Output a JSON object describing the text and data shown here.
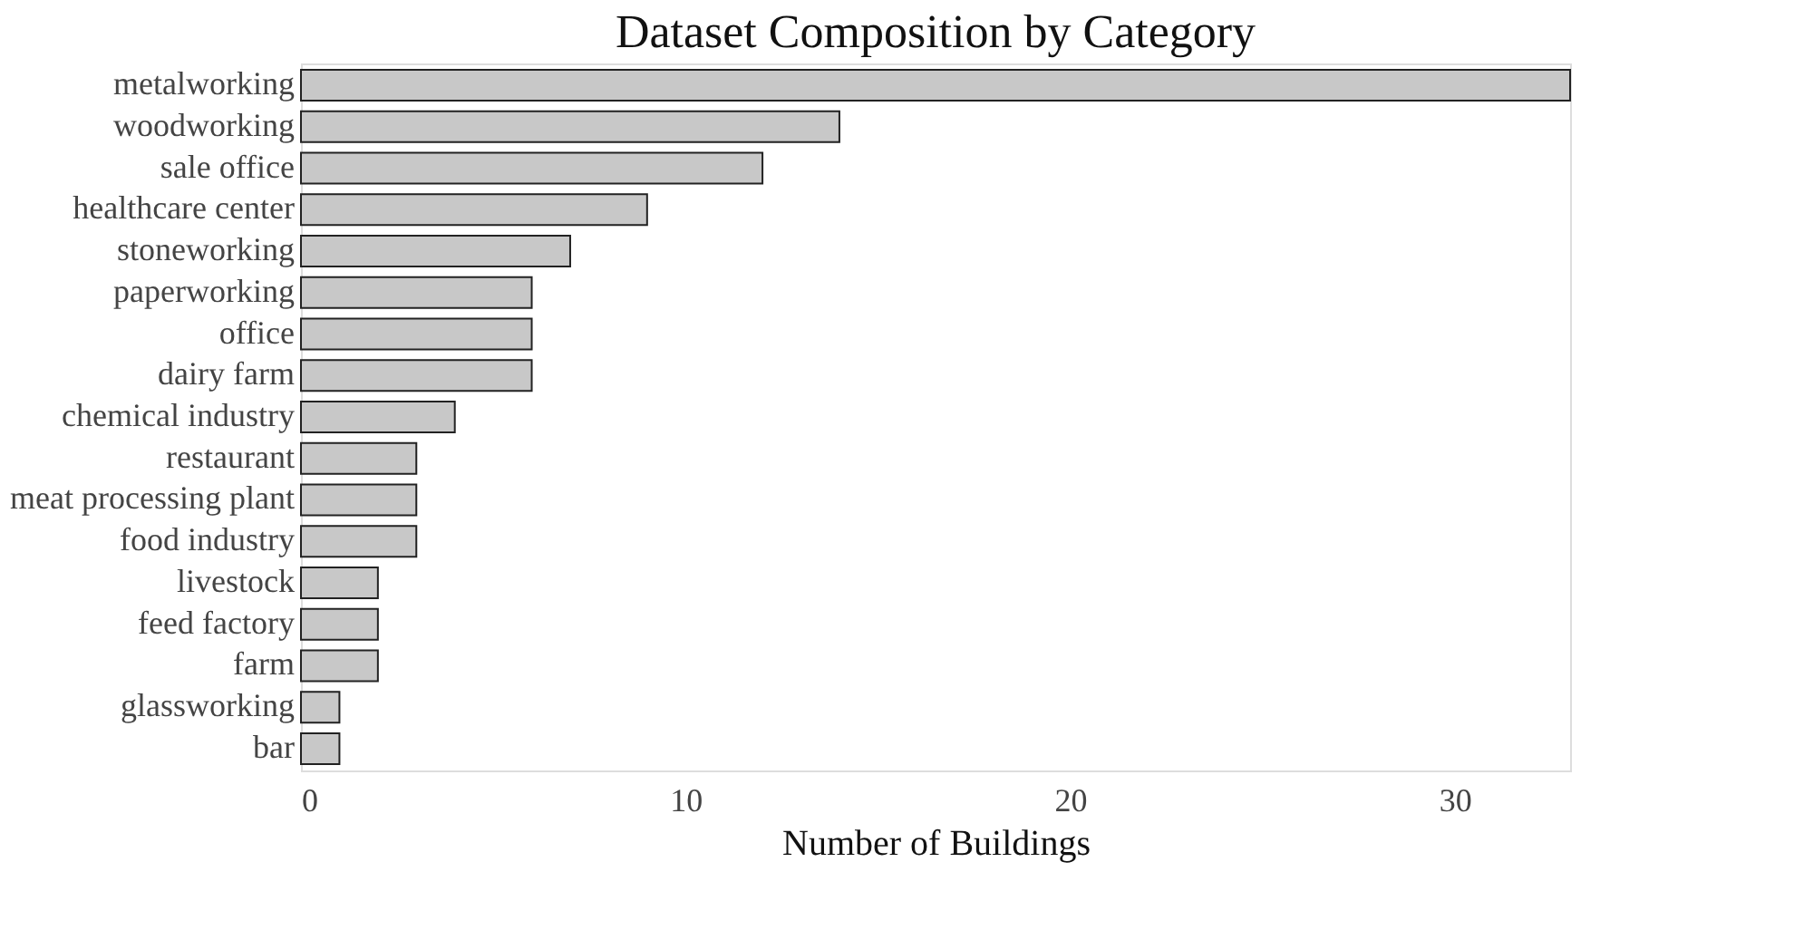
{
  "chart_data": {
    "type": "bar",
    "orientation": "horizontal",
    "title": "Dataset Composition by Category",
    "xlabel": "Number of Buildings",
    "categories": [
      "metalworking",
      "woodworking",
      "sale office",
      "healthcare center",
      "stoneworking",
      "paperworking",
      "office",
      "dairy farm",
      "chemical industry",
      "restaurant",
      "meat processing plant",
      "food industry",
      "livestock",
      "feed factory",
      "farm",
      "glassworking",
      "bar"
    ],
    "values": [
      33,
      14,
      12,
      9,
      7,
      6,
      6,
      6,
      4,
      3,
      3,
      3,
      2,
      2,
      2,
      1,
      1
    ],
    "color": "#c8c8c8",
    "xlim": [
      0,
      33
    ],
    "xticks": [
      0,
      10,
      20,
      30
    ],
    "grid": false
  }
}
